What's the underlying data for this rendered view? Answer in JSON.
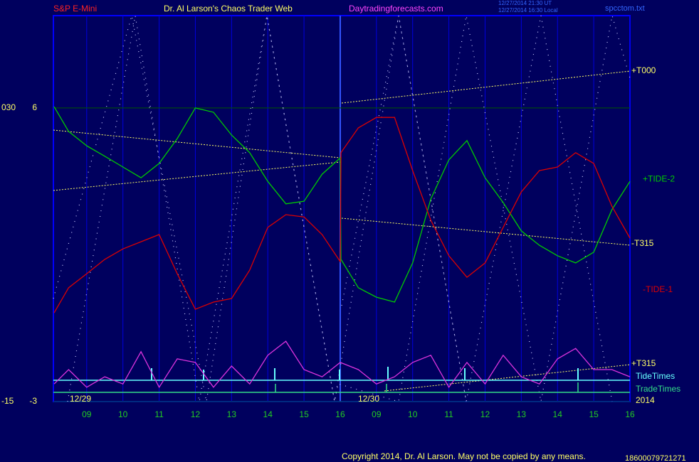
{
  "chart_data": {
    "type": "line",
    "title": "Dr. Al Larson's Chaos Trader Web",
    "subtitle": "S&P E-Mini",
    "site": "Daytradingforecasts.com",
    "timestamps": [
      "12/27/2014 21:30 UT",
      "12/27/2014 16:30 Local"
    ],
    "file": "spcctom.txt",
    "footer": "Copyright 2014, Dr. Al Larson. May not be copied by any means.",
    "serial": "18600079721271",
    "annotations": [
      "+T000",
      "-T315",
      "+T315",
      "TideTimes",
      "TradeTimes",
      "2014",
      "12/29",
      "12/30"
    ],
    "xlim": [
      0.08,
      16
    ],
    "xticks": [
      {
        "value": 1,
        "label": "09"
      },
      {
        "value": 2,
        "label": "10"
      },
      {
        "value": 3,
        "label": "11"
      },
      {
        "value": 4,
        "label": "12"
      },
      {
        "value": 5,
        "label": "13"
      },
      {
        "value": 6,
        "label": "14"
      },
      {
        "value": 7,
        "label": "15"
      },
      {
        "value": 8,
        "label": "16"
      },
      {
        "value": 9,
        "label": "09"
      },
      {
        "value": 10,
        "label": "10"
      },
      {
        "value": 11,
        "label": "11"
      },
      {
        "value": 12,
        "label": "12"
      },
      {
        "value": 13,
        "label": "13"
      },
      {
        "value": 14,
        "label": "14"
      },
      {
        "value": 15,
        "label": "15"
      },
      {
        "value": 16,
        "label": "16"
      }
    ],
    "ylim": [
      -3,
      8.83
    ],
    "yticks": [
      -3,
      6
    ],
    "y2lim": [
      -15,
      44.15
    ],
    "y2ticks": [
      -15,
      {
        "value": 30,
        "label": "030"
      }
    ],
    "grid": true,
    "series": [
      {
        "name": "+TIDE-2",
        "color": "#00cc00",
        "x": [
          0.1,
          0.5,
          1,
          1.5,
          2,
          2.5,
          3,
          3.5,
          4,
          4.5,
          5,
          5.5,
          6,
          6.5,
          7,
          7.5,
          8,
          8.02,
          8.5,
          9,
          9.5,
          10,
          10.5,
          11,
          11.5,
          12,
          12.5,
          13,
          13.5,
          14,
          14.5,
          15,
          15.5,
          16
        ],
        "values": [
          6.04,
          5.28,
          4.84,
          4.52,
          4.19,
          3.86,
          4.3,
          5.06,
          6.0,
          5.87,
          5.17,
          4.63,
          3.75,
          3.06,
          3.14,
          3.97,
          4.47,
          1.36,
          0.49,
          0.2,
          0.05,
          1.25,
          3.21,
          4.41,
          5.0,
          3.86,
          3.1,
          2.23,
          1.79,
          1.47,
          1.25,
          1.58,
          2.88,
          3.75
        ]
      },
      {
        "name": "-TIDE-1",
        "color": "#dd0000",
        "x": [
          0.1,
          0.5,
          1,
          1.5,
          2,
          2.5,
          3,
          3.5,
          4,
          4.5,
          5,
          5.5,
          6,
          6.5,
          7,
          7.5,
          8,
          8.02,
          8.5,
          9,
          9.5,
          10,
          10.5,
          11,
          11.5,
          12,
          12.5,
          13,
          13.5,
          14,
          14.5,
          15,
          15.5,
          16
        ],
        "values": [
          -0.28,
          0.49,
          0.92,
          1.36,
          1.68,
          1.9,
          2.12,
          0.92,
          -0.17,
          0.05,
          0.16,
          1.03,
          2.34,
          2.73,
          2.66,
          2.12,
          1.29,
          4.63,
          5.39,
          5.71,
          5.71,
          4.08,
          2.56,
          1.47,
          0.81,
          1.25,
          2.34,
          3.43,
          4.08,
          4.19,
          4.63,
          4.3,
          2.99,
          2.01
        ]
      },
      {
        "color": "#dd33dd",
        "x": [
          0.1,
          0.5,
          1,
          1.5,
          2,
          2.5,
          3,
          3.5,
          4,
          4.5,
          5,
          5.5,
          6,
          6.5,
          7,
          7.5,
          8,
          8.5,
          9,
          9.5,
          10,
          10.5,
          11,
          11.5,
          12,
          12.5,
          13,
          13.5,
          14,
          14.5,
          15,
          15.5,
          16
        ],
        "values": [
          -2.46,
          -2.02,
          -2.56,
          -2.24,
          -2.46,
          -1.47,
          -2.56,
          -1.69,
          -1.8,
          -2.56,
          -1.91,
          -2.46,
          -1.58,
          -1.15,
          -2.02,
          -2.24,
          -1.8,
          -2.02,
          -2.46,
          -2.24,
          -1.8,
          -1.58,
          -2.56,
          -1.8,
          -2.46,
          -1.58,
          -2.24,
          -2.46,
          -1.69,
          -1.37,
          -2.02,
          -2.02,
          -2.24
        ]
      }
    ]
  }
}
